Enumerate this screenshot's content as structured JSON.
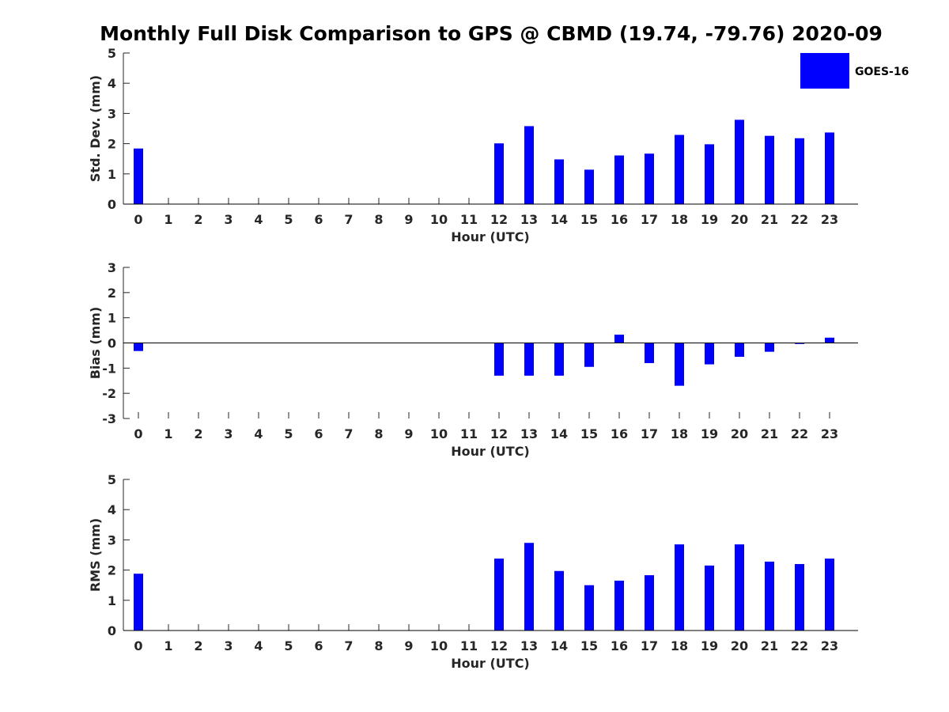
{
  "title": "Monthly Full Disk Comparison to GPS @ CBMD (19.74, -79.76) 2020-09",
  "colors": {
    "bar": "#0000ff",
    "axis": "#262626",
    "background": "#ffffff"
  },
  "legend": {
    "label": "GOES-16",
    "placement": "top-right"
  },
  "chart_data": [
    {
      "type": "bar",
      "categories": [
        "0",
        "1",
        "2",
        "3",
        "4",
        "5",
        "6",
        "7",
        "8",
        "9",
        "10",
        "11",
        "12",
        "13",
        "14",
        "15",
        "16",
        "17",
        "18",
        "19",
        "20",
        "21",
        "22",
        "23"
      ],
      "series": [
        {
          "name": "GOES-16",
          "values": [
            1.84,
            0,
            0,
            0,
            0,
            0,
            0,
            0,
            0,
            0,
            0,
            0,
            2.01,
            2.58,
            1.48,
            1.14,
            1.61,
            1.67,
            2.29,
            1.98,
            2.79,
            2.26,
            2.18,
            2.37
          ]
        }
      ],
      "xlabel": "Hour (UTC)",
      "ylabel": "Std. Dev. (mm)",
      "ylim": [
        0,
        5
      ],
      "yticks": [
        "0",
        "1",
        "2",
        "3",
        "4",
        "5"
      ],
      "grid": false
    },
    {
      "type": "bar",
      "categories": [
        "0",
        "1",
        "2",
        "3",
        "4",
        "5",
        "6",
        "7",
        "8",
        "9",
        "10",
        "11",
        "12",
        "13",
        "14",
        "15",
        "16",
        "17",
        "18",
        "19",
        "20",
        "21",
        "22",
        "23"
      ],
      "series": [
        {
          "name": "GOES-16",
          "values": [
            -0.32,
            0,
            0,
            0,
            0,
            0,
            0,
            0,
            0,
            0,
            0,
            0,
            -1.3,
            -1.3,
            -1.3,
            -0.95,
            0.33,
            -0.8,
            -1.7,
            -0.85,
            -0.55,
            -0.35,
            -0.04,
            0.21
          ]
        }
      ],
      "xlabel": "Hour (UTC)",
      "ylabel": "Bias (mm)",
      "ylim": [
        -3,
        3
      ],
      "yticks": [
        "-3",
        "-2",
        "-1",
        "0",
        "1",
        "2",
        "3"
      ],
      "grid": false
    },
    {
      "type": "bar",
      "categories": [
        "0",
        "1",
        "2",
        "3",
        "4",
        "5",
        "6",
        "7",
        "8",
        "9",
        "10",
        "11",
        "12",
        "13",
        "14",
        "15",
        "16",
        "17",
        "18",
        "19",
        "20",
        "21",
        "22",
        "23"
      ],
      "series": [
        {
          "name": "GOES-16",
          "values": [
            1.88,
            0,
            0,
            0,
            0,
            0,
            0,
            0,
            0,
            0,
            0,
            0,
            2.38,
            2.9,
            1.97,
            1.5,
            1.65,
            1.83,
            2.85,
            2.15,
            2.85,
            2.28,
            2.2,
            2.38
          ]
        }
      ],
      "xlabel": "Hour (UTC)",
      "ylabel": "RMS (mm)",
      "ylim": [
        0,
        5
      ],
      "yticks": [
        "0",
        "1",
        "2",
        "3",
        "4",
        "5"
      ],
      "grid": false
    }
  ]
}
